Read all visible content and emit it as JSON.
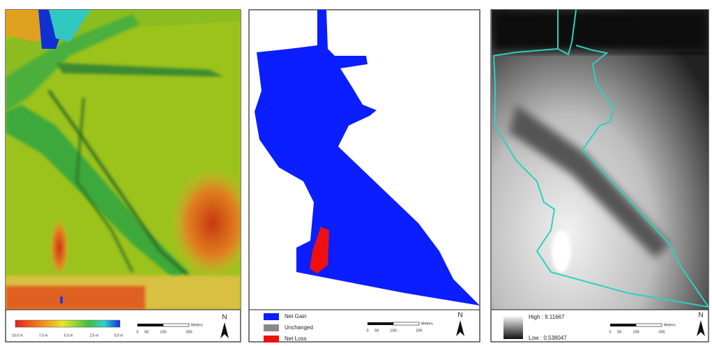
{
  "panels": [
    {
      "colorbar_labels": [
        "10.0 m",
        "7.5 m",
        "5.0 m",
        "2.5 m",
        "0.0 m"
      ],
      "scale_bar": {
        "ticks": [
          "0",
          "50",
          "100",
          "200"
        ],
        "unit": "Meters"
      },
      "north": "N"
    },
    {
      "legend": [
        "Net Gain",
        "Unchanged",
        "Net Loss"
      ],
      "scale_bar": {
        "ticks": [
          "0",
          "50",
          "100",
          "200"
        ],
        "unit": "Meters"
      },
      "north": "N"
    },
    {
      "legend": {
        "high": "High : 9.11667",
        "low": "Low : 0.538047"
      },
      "scale_bar": {
        "ticks": [
          "0",
          "50",
          "100",
          "200"
        ],
        "unit": "Meters"
      },
      "north": "N"
    }
  ]
}
